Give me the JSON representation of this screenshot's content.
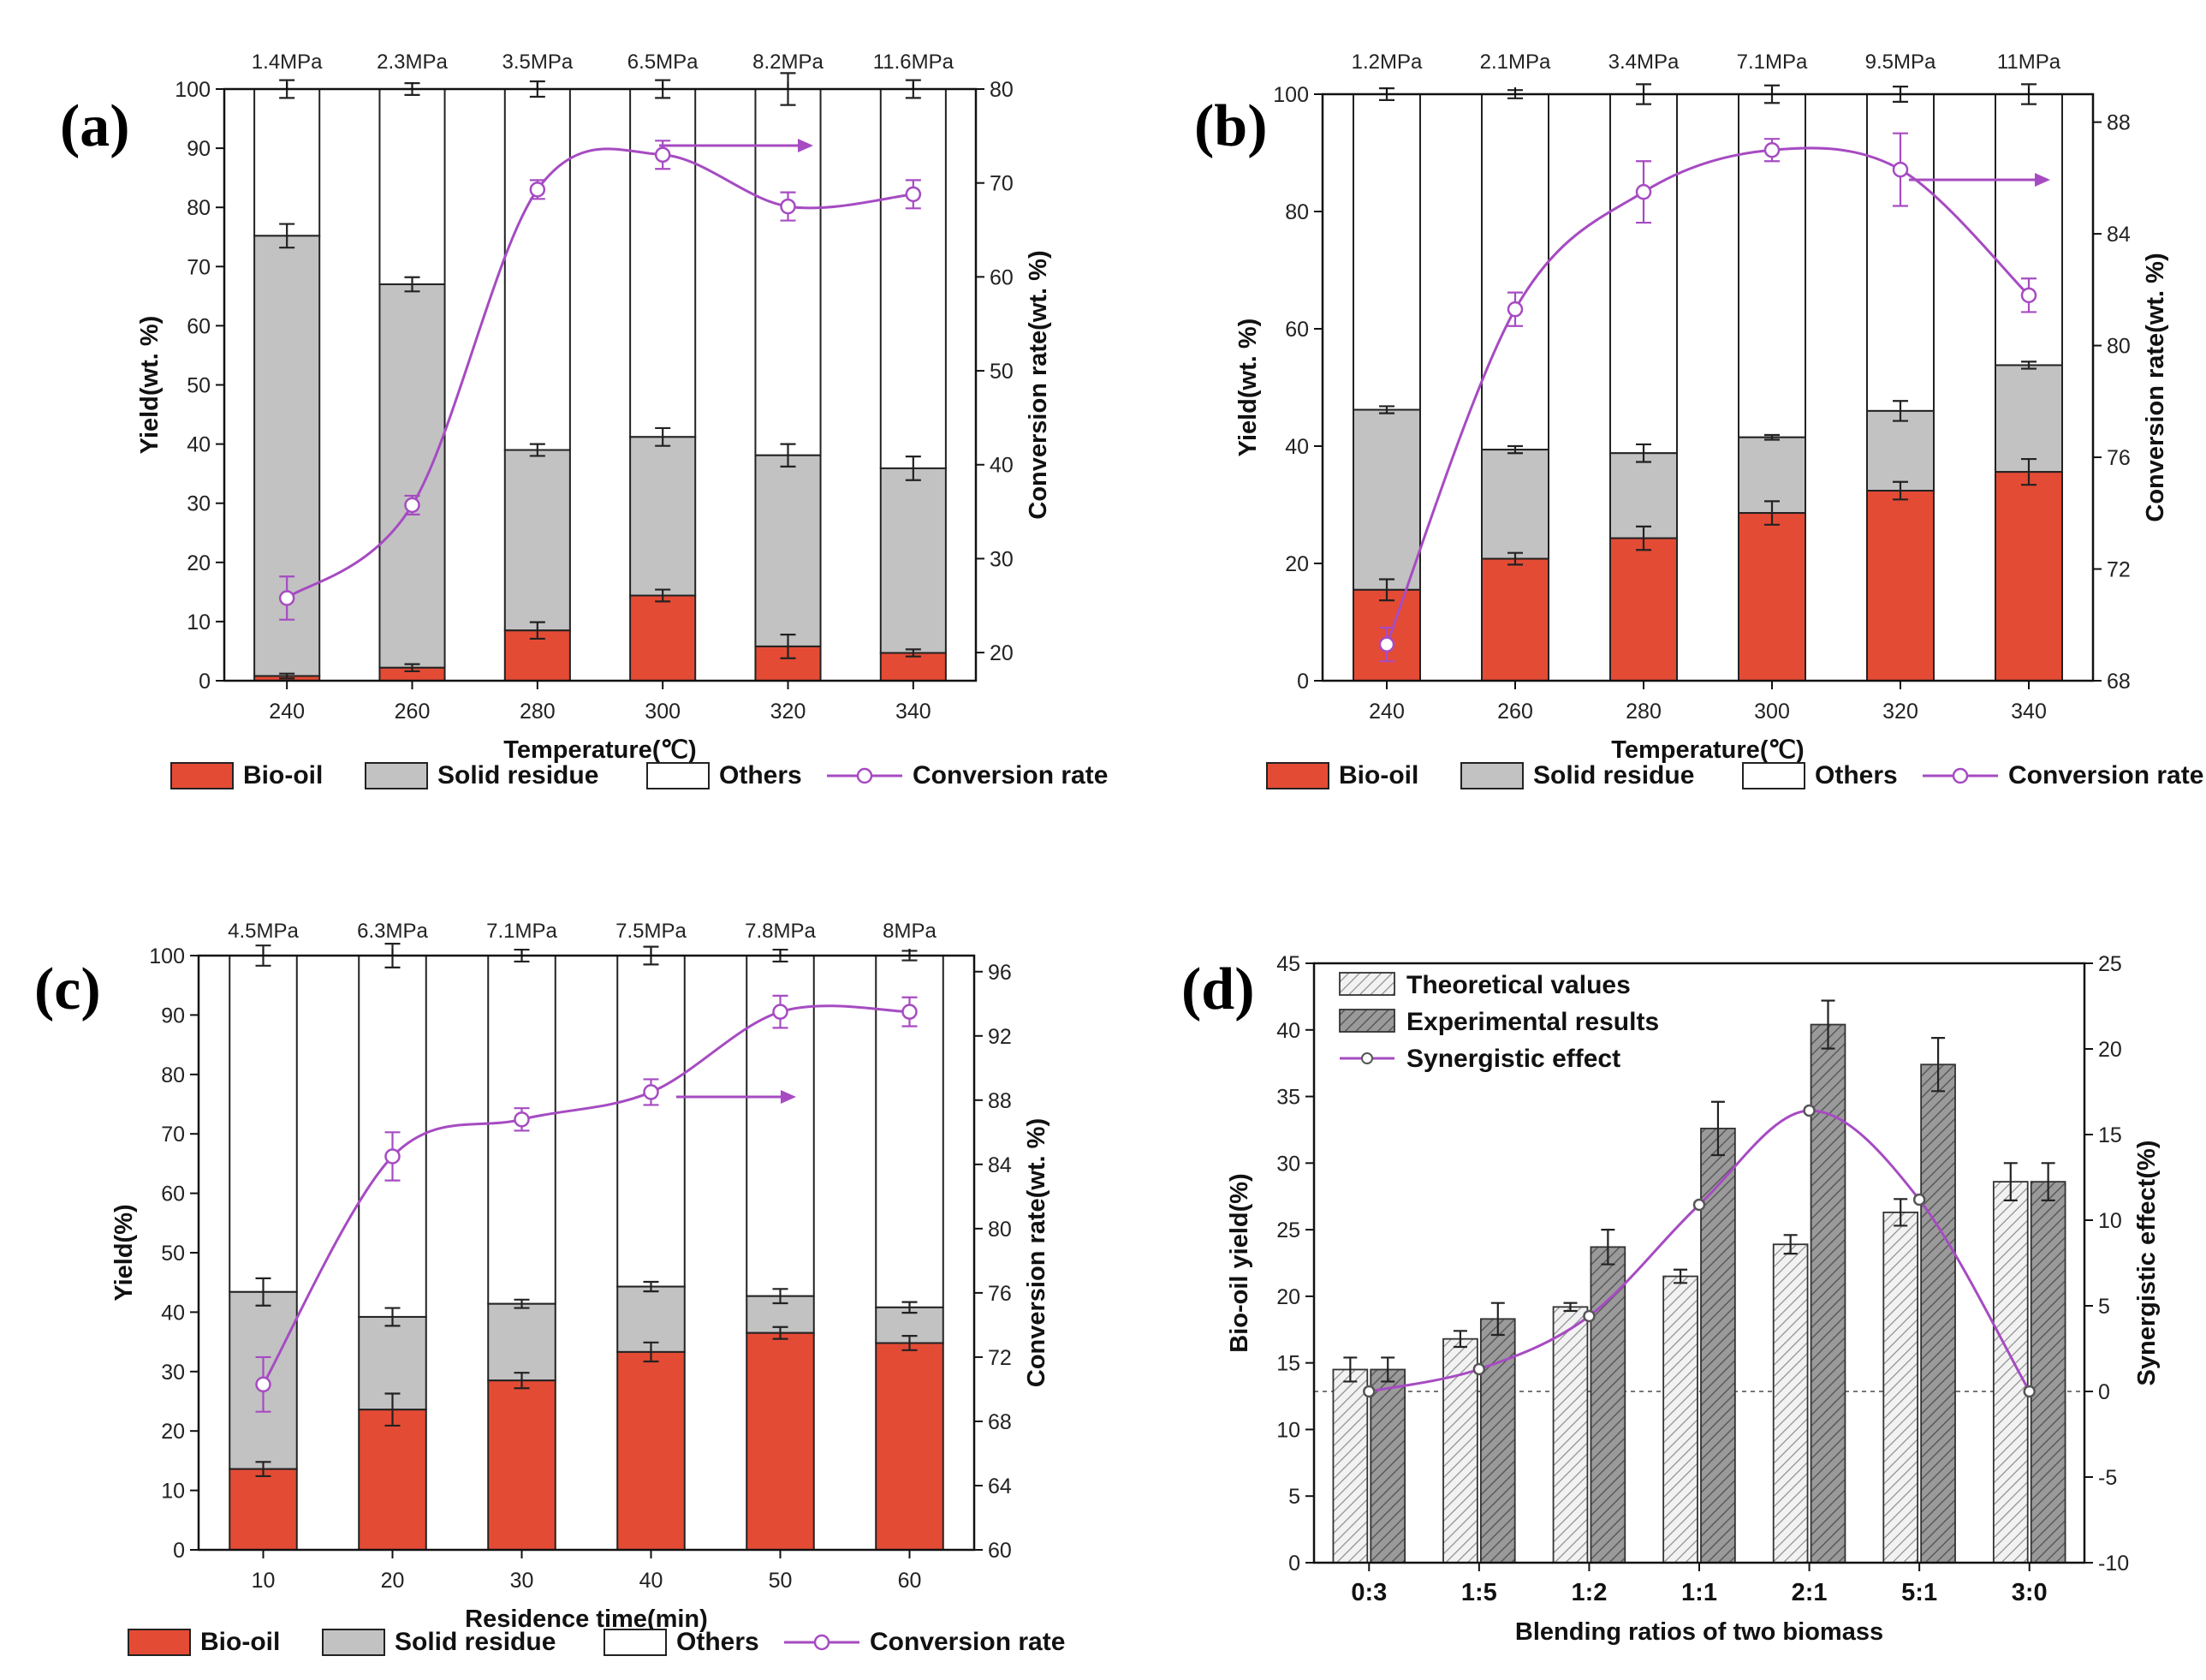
{
  "colors": {
    "bio_oil": "#e44b35",
    "solid_residue": "#c2c2c2",
    "others": "#ffffff",
    "conversion": "#a64bc2",
    "axis": "#111111"
  },
  "chart_data": [
    {
      "id": "a",
      "type": "bar",
      "panel_label": "(a)",
      "xlabel": "Temperature(℃)",
      "ylabel": "Yield(wt. %)",
      "y2label": "Conversion rate(wt. %)",
      "categories": [
        "240",
        "260",
        "280",
        "300",
        "320",
        "340"
      ],
      "pressures": [
        "1.4MPa",
        "2.3MPa",
        "3.5MPa",
        "6.5MPa",
        "8.2MPa",
        "11.6MPa"
      ],
      "ylim": [
        0,
        100
      ],
      "yticks": [
        0,
        10,
        20,
        30,
        40,
        50,
        60,
        70,
        80,
        90,
        100
      ],
      "y2lim": [
        17,
        80
      ],
      "y2ticks": [
        20,
        30,
        40,
        50,
        60,
        70,
        80
      ],
      "series": [
        {
          "name": "Bio-oil",
          "values": [
            0.8,
            2.2,
            8.5,
            14.4,
            5.8,
            4.7
          ],
          "errors": [
            0.4,
            0.6,
            1.4,
            1.0,
            2.0,
            0.6
          ]
        },
        {
          "name": "Solid residue",
          "values": [
            75.2,
            67.0,
            39.0,
            41.2,
            38.1,
            35.9
          ],
          "errors": [
            2.0,
            1.2,
            1.0,
            1.5,
            1.9,
            2.0
          ]
        },
        {
          "name": "Others",
          "values": [
            100,
            100,
            100,
            100,
            100,
            100
          ],
          "errors": [
            1.5,
            1.0,
            1.3,
            1.5,
            2.7,
            1.5
          ]
        },
        {
          "name": "Conversion rate",
          "axis": "right",
          "values": [
            25.8,
            35.7,
            69.3,
            73.0,
            67.5,
            68.8
          ],
          "errors": [
            2.3,
            1.0,
            1.0,
            1.5,
            1.5,
            1.5
          ]
        }
      ],
      "legend": [
        "Bio-oil",
        "Solid residue",
        "Others",
        "Conversion rate"
      ]
    },
    {
      "id": "b",
      "type": "bar",
      "panel_label": "(b)",
      "xlabel": "Temperature(℃)",
      "ylabel": "Yield(wt. %)",
      "y2label": "Conversion rate(wt. %)",
      "categories": [
        "240",
        "260",
        "280",
        "300",
        "320",
        "340"
      ],
      "pressures": [
        "1.2MPa",
        "2.1MPa",
        "3.4MPa",
        "7.1MPa",
        "9.5MPa",
        "11MPa"
      ],
      "ylim": [
        0,
        100
      ],
      "yticks": [
        0,
        20,
        40,
        60,
        80,
        100
      ],
      "y2lim": [
        68,
        89
      ],
      "y2ticks": [
        68,
        72,
        76,
        80,
        84,
        88
      ],
      "series": [
        {
          "name": "Bio-oil",
          "values": [
            15.5,
            20.8,
            24.3,
            28.6,
            32.4,
            35.6
          ],
          "errors": [
            1.8,
            1.0,
            2.0,
            2.0,
            1.5,
            2.2
          ]
        },
        {
          "name": "Solid residue",
          "values": [
            46.2,
            39.4,
            38.8,
            41.5,
            46.0,
            53.8
          ],
          "errors": [
            0.6,
            0.6,
            1.5,
            0.4,
            1.7,
            0.6
          ]
        },
        {
          "name": "Others",
          "values": [
            100,
            100,
            100,
            100,
            100,
            100
          ],
          "errors": [
            1.0,
            0.7,
            1.7,
            1.5,
            1.3,
            1.7
          ]
        },
        {
          "name": "Conversion rate",
          "axis": "right",
          "values": [
            69.3,
            81.3,
            85.5,
            87.0,
            86.3,
            81.8
          ],
          "errors": [
            0.6,
            0.6,
            1.1,
            0.4,
            1.3,
            0.6
          ]
        }
      ],
      "legend": [
        "Bio-oil",
        "Solid residue",
        "Others",
        "Conversion rate"
      ]
    },
    {
      "id": "c",
      "type": "bar",
      "panel_label": "(c)",
      "xlabel": "Residence time(min)",
      "ylabel": "Yield(%)",
      "y2label": "Conversion rate(wt. %)",
      "categories": [
        "10",
        "20",
        "30",
        "40",
        "50",
        "60"
      ],
      "pressures": [
        "4.5MPa",
        "6.3MPa",
        "7.1MPa",
        "7.5MPa",
        "7.8MPa",
        "8MPa"
      ],
      "ylim": [
        0,
        100
      ],
      "yticks": [
        0,
        10,
        20,
        30,
        40,
        50,
        60,
        70,
        80,
        90,
        100
      ],
      "y2lim": [
        60,
        97
      ],
      "y2ticks": [
        60,
        64,
        68,
        72,
        76,
        80,
        84,
        88,
        92,
        96
      ],
      "series": [
        {
          "name": "Bio-oil",
          "values": [
            13.6,
            23.6,
            28.5,
            33.3,
            36.5,
            34.8
          ],
          "errors": [
            1.2,
            2.7,
            1.3,
            1.6,
            1.0,
            1.2
          ]
        },
        {
          "name": "Solid residue",
          "values": [
            43.4,
            39.2,
            41.4,
            44.3,
            42.7,
            40.8
          ],
          "errors": [
            2.3,
            1.5,
            0.7,
            0.8,
            1.2,
            0.9
          ]
        },
        {
          "name": "Others",
          "values": [
            100,
            100,
            100,
            100,
            100,
            100
          ],
          "errors": [
            1.7,
            2.0,
            1.0,
            1.5,
            1.0,
            0.8
          ]
        },
        {
          "name": "Conversion rate",
          "axis": "right",
          "values": [
            70.3,
            84.5,
            86.8,
            88.5,
            93.5,
            93.5
          ],
          "errors": [
            1.7,
            1.5,
            0.7,
            0.8,
            1.0,
            0.9
          ]
        }
      ],
      "legend": [
        "Bio-oil",
        "Solid residue",
        "Others",
        "Conversion rate"
      ]
    },
    {
      "id": "d",
      "type": "bar",
      "panel_label": "(d)",
      "xlabel": "Blending ratios of two biomass",
      "ylabel": "Bio-oil yield(%)",
      "y2label": "Synergistic effect(%)",
      "categories": [
        "0:3",
        "1:5",
        "1:2",
        "1:1",
        "2:1",
        "5:1",
        "3:0"
      ],
      "ylim": [
        0,
        45
      ],
      "yticks": [
        0,
        5,
        10,
        15,
        20,
        25,
        30,
        35,
        40,
        45
      ],
      "y2lim": [
        -10,
        25
      ],
      "y2ticks": [
        -10,
        -5,
        0,
        5,
        10,
        15,
        20,
        25
      ],
      "series": [
        {
          "name": "Theoretical values",
          "values": [
            14.5,
            16.8,
            19.2,
            21.5,
            23.9,
            26.3,
            28.6
          ],
          "errors": [
            0.9,
            0.6,
            0.3,
            0.5,
            0.7,
            1.0,
            1.4
          ]
        },
        {
          "name": "Experimental results",
          "values": [
            14.5,
            18.3,
            23.7,
            32.6,
            40.4,
            37.4,
            28.6
          ],
          "errors": [
            0.9,
            1.2,
            1.3,
            2.0,
            1.8,
            2.0,
            1.4
          ]
        },
        {
          "name": "Synergistic effect",
          "axis": "right",
          "values": [
            0.0,
            1.3,
            4.4,
            10.9,
            16.4,
            11.2,
            0.0
          ]
        }
      ],
      "legend": [
        "Theoretical values",
        "Experimental results",
        "Synergistic effect"
      ]
    }
  ]
}
